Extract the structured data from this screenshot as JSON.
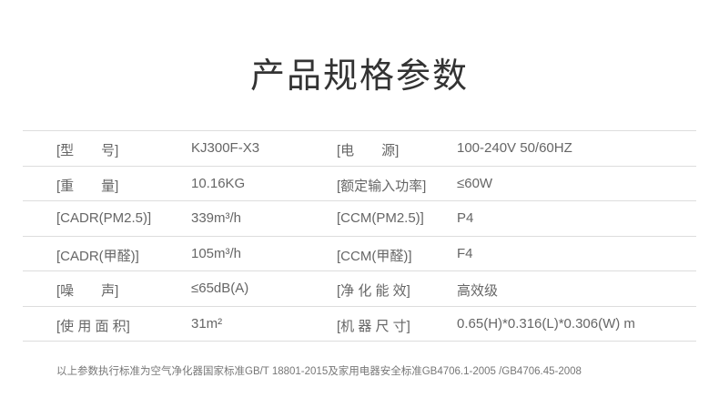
{
  "title": "产品规格参数",
  "specs": [
    {
      "label1": "[型　　号]",
      "value1": "KJ300F-X3",
      "label2": "[电　　源]",
      "value2": "100-240V  50/60HZ"
    },
    {
      "label1": "[重　　量]",
      "value1": "10.16KG",
      "label2": "[额定输入功率]",
      "value2": "≤60W"
    },
    {
      "label1": "[CADR(PM2.5)]",
      "value1": "339m³/h",
      "label2": "[CCM(PM2.5)]",
      "value2": "P4"
    },
    {
      "label1": "[CADR(甲醛)]",
      "value1": "105m³/h",
      "label2": "[CCM(甲醛)]",
      "value2": "F4"
    },
    {
      "label1": "[噪　　声]",
      "value1": "≤65dB(A)",
      "label2": "[净 化 能 效]",
      "value2": "高效级"
    },
    {
      "label1": "[使 用 面 积]",
      "value1": "31m²",
      "label2": "[机 器 尺 寸]",
      "value2": "0.65(H)*0.316(L)*0.306(W) m"
    }
  ],
  "footnote": "以上参数执行标准为空气净化器国家标准GB/T 18801-2015及家用电器安全标准GB4706.1-2005 /GB4706.45-2008"
}
